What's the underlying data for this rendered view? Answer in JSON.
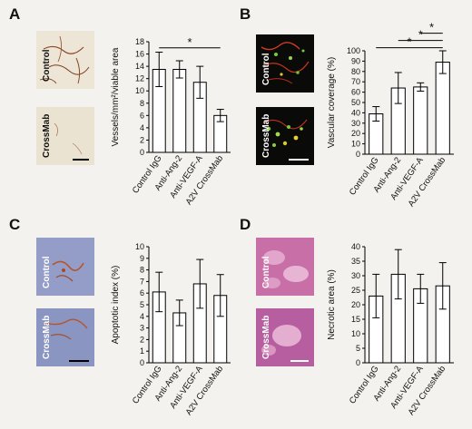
{
  "panels": [
    {
      "letter": "A",
      "images": [
        {
          "label": "Control",
          "theme": "ihc-light"
        },
        {
          "label": "CrossMab",
          "theme": "ihc-light"
        }
      ]
    },
    {
      "letter": "B",
      "images": [
        {
          "label": "Control",
          "theme": "fluorescent"
        },
        {
          "label": "CrossMab",
          "theme": "fluorescent"
        }
      ]
    },
    {
      "letter": "C",
      "images": [
        {
          "label": "Control",
          "theme": "ihc-blue"
        },
        {
          "label": "CrossMab",
          "theme": "ihc-blue"
        }
      ]
    },
    {
      "letter": "D",
      "images": [
        {
          "label": "Control",
          "theme": "he-pink"
        },
        {
          "label": "CrossMab",
          "theme": "he-pink"
        }
      ]
    }
  ],
  "colors": {
    "background": "#f3f2ee",
    "bar_fill": "#ffffff",
    "bar_stroke": "#000000",
    "label_dark": "#111111",
    "label_light": "#ffffff"
  },
  "chart_data": [
    {
      "type": "bar",
      "categories": [
        "Control IgG",
        "Anti-Ang-2",
        "Anti-VEGF-A",
        "A2V CrossMab"
      ],
      "values": [
        13.5,
        13.5,
        11.4,
        6.0
      ],
      "errors": [
        2.8,
        1.4,
        2.6,
        1.0
      ],
      "ylabel": "Vessels/mm²/viable area",
      "ylim": [
        0,
        18
      ],
      "yticks": [
        0,
        2,
        4,
        6,
        8,
        10,
        12,
        14,
        16,
        18
      ],
      "significance": [
        {
          "from": 0,
          "to": 3,
          "label": "*",
          "y": 17.0
        }
      ]
    },
    {
      "type": "bar",
      "categories": [
        "Control IgG",
        "Anti-Ang-2",
        "Anti-VEGF-A",
        "A2V CrossMab"
      ],
      "values": [
        39,
        64,
        65,
        89
      ],
      "errors": [
        7,
        15,
        4,
        11
      ],
      "ylabel": "Vascular coverage (%)",
      "ylim": [
        0,
        100
      ],
      "yticks": [
        0,
        10,
        20,
        30,
        40,
        50,
        60,
        70,
        80,
        90,
        100
      ],
      "significance": [
        {
          "from": 0,
          "to": 3,
          "label": "*",
          "y": 103
        },
        {
          "from": 1,
          "to": 3,
          "label": "*",
          "y": 110
        },
        {
          "from": 2,
          "to": 3,
          "label": "*",
          "y": 117
        }
      ]
    },
    {
      "type": "bar",
      "categories": [
        "Control IgG",
        "Anti-Ang-2",
        "Anti-VEGF-A",
        "A2V CrossMab"
      ],
      "values": [
        6.1,
        4.3,
        6.8,
        5.8
      ],
      "errors": [
        1.7,
        1.1,
        2.1,
        1.8
      ],
      "ylabel": "Apoptotic index (%)",
      "ylim": [
        0,
        10
      ],
      "yticks": [
        0,
        1,
        2,
        3,
        4,
        5,
        6,
        7,
        8,
        9,
        10
      ],
      "significance": []
    },
    {
      "type": "bar",
      "categories": [
        "Control IgG",
        "Anti-Ang-2",
        "Anti-VEGF-A",
        "A2V CrossMab"
      ],
      "values": [
        23,
        30.5,
        25.5,
        26.5
      ],
      "errors": [
        7.5,
        8.5,
        5,
        8
      ],
      "ylabel": "Necrotic area (%)",
      "ylim": [
        0,
        40
      ],
      "yticks": [
        0,
        5,
        10,
        15,
        20,
        25,
        30,
        35,
        40
      ],
      "significance": []
    }
  ]
}
